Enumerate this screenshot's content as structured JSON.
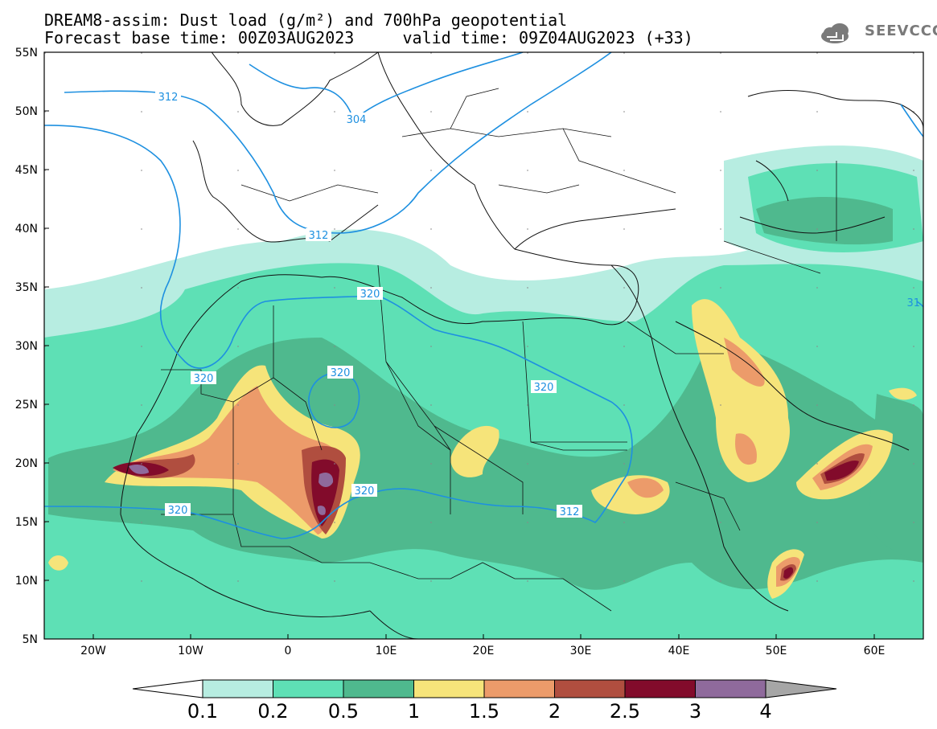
{
  "title": {
    "line1": "DREAM8-assim: Dust load (g/m²) and 700hPa geopotential",
    "line2": "Forecast base time: 00Z03AUG2023     valid time: 09Z04AUG2023 (+33)"
  },
  "logo": {
    "text": "SEEVCCC",
    "icon": "cloud-icon"
  },
  "map": {
    "lat_range": [
      5,
      55
    ],
    "lon_range": [
      -25,
      65
    ],
    "lat_ticks": [
      "55N",
      "50N",
      "45N",
      "40N",
      "35N",
      "30N",
      "25N",
      "20N",
      "15N",
      "10N",
      "5N"
    ],
    "lon_ticks": [
      "20W",
      "10W",
      "0",
      "10E",
      "20E",
      "30E",
      "40E",
      "50E",
      "60E"
    ],
    "contour_labels": [
      "312",
      "304",
      "312",
      "320",
      "320",
      "320",
      "320",
      "320",
      "320",
      "312",
      "31"
    ],
    "contour_color": "#1e90e0"
  },
  "legend": {
    "levels": [
      "0.1",
      "0.2",
      "0.5",
      "1",
      "1.5",
      "2",
      "2.5",
      "3",
      "4"
    ],
    "colors": [
      "#ffffff",
      "#b7ede1",
      "#5ee0b5",
      "#4fb98e",
      "#f6e47a",
      "#ec9b6a",
      "#b04e3f",
      "#820b2b",
      "#8f6a9c",
      "#a6a6a6"
    ]
  }
}
